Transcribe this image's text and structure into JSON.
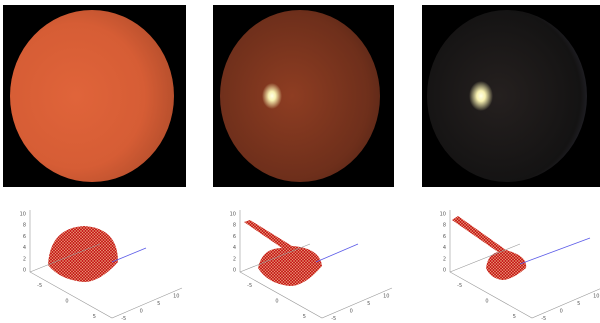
{
  "panels": [
    {
      "plot": {
        "zticks": [
          "10",
          "8",
          "6",
          "4",
          "2",
          "0"
        ],
        "xticks": [
          "-5",
          "0",
          "5"
        ],
        "yticks": [
          "-5",
          "0",
          "5",
          "10"
        ]
      }
    },
    {
      "plot": {
        "zticks": [
          "10",
          "8",
          "6",
          "4",
          "2",
          "0"
        ],
        "xticks": [
          "-5",
          "0",
          "5"
        ],
        "yticks": [
          "-5",
          "0",
          "5",
          "10"
        ]
      }
    },
    {
      "plot": {
        "zticks": [
          "10",
          "8",
          "6",
          "4",
          "2",
          "0"
        ],
        "xticks": [
          "-5",
          "0",
          "5"
        ],
        "yticks": [
          "-5",
          "0",
          "5",
          "10"
        ]
      }
    }
  ]
}
